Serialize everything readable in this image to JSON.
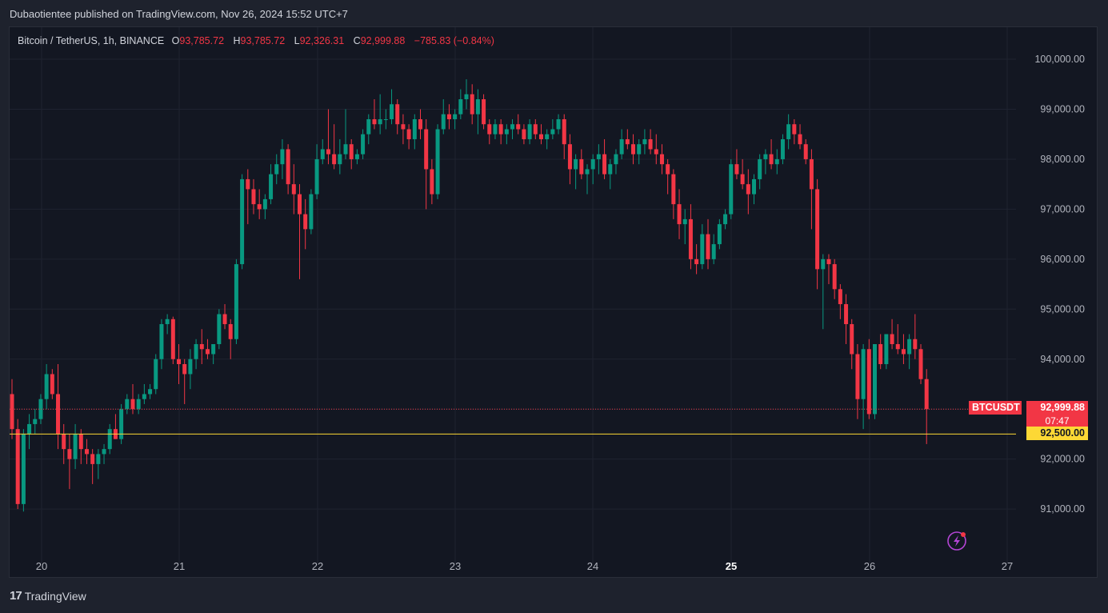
{
  "header": {
    "publisher_line": "Dubaotientee published on TradingView.com, Nov 26, 2024 15:52 UTC+7"
  },
  "legend": {
    "symbol": "Bitcoin / TetherUS, 1h, BINANCE",
    "open_label": "O",
    "open": "93,785.72",
    "high_label": "H",
    "high": "93,785.72",
    "low_label": "L",
    "low": "92,326.31",
    "close_label": "C",
    "close": "92,999.88",
    "change": "−785.83 (−0.84%)"
  },
  "price_axis": {
    "ticks": [
      "100,000.00",
      "99,000.00",
      "98,000.00",
      "97,000.00",
      "96,000.00",
      "95,000.00",
      "94,000.00",
      "92,000.00",
      "91,000.00"
    ]
  },
  "current_price": {
    "symbol_tag": "BTCUSDT",
    "price": "92,999.88",
    "countdown": "07:47"
  },
  "horizontal_line": {
    "price_label": "92,500.00"
  },
  "time_axis": {
    "ticks": [
      "20",
      "21",
      "22",
      "23",
      "24",
      "25",
      "26",
      "27"
    ],
    "bold_tick": "25"
  },
  "footer": {
    "brand": "TradingView",
    "logo_text": "17"
  },
  "colors": {
    "up": "#089981",
    "down": "#f23645",
    "hline": "#fdd835",
    "background": "#131722"
  },
  "chart_data": {
    "type": "candlestick",
    "symbol": "BTCUSDT",
    "interval": "1h",
    "exchange": "BINANCE",
    "x_ticks": [
      "20",
      "21",
      "22",
      "23",
      "24",
      "25",
      "26",
      "27"
    ],
    "y_range": [
      90000,
      100600
    ],
    "current_price": 92999.88,
    "horizontal_level": 92500.0,
    "grid": true,
    "candles_start": "Nov 19, 21:00",
    "candles": [
      [
        93300,
        93600,
        92400,
        92600
      ],
      [
        92600,
        92800,
        91000,
        91100
      ],
      [
        91100,
        92600,
        90950,
        92500
      ],
      [
        92500,
        92900,
        92200,
        92700
      ],
      [
        92700,
        93000,
        92500,
        92800
      ],
      [
        92800,
        93300,
        92700,
        93200
      ],
      [
        93200,
        93900,
        93000,
        93700
      ],
      [
        93700,
        93800,
        93200,
        93300
      ],
      [
        93300,
        93900,
        92200,
        92500
      ],
      [
        92500,
        92700,
        91900,
        92200
      ],
      [
        92200,
        92500,
        91400,
        92000
      ],
      [
        92000,
        92700,
        91800,
        92500
      ],
      [
        92500,
        92600,
        91900,
        92200
      ],
      [
        92200,
        92400,
        91900,
        92100
      ],
      [
        92100,
        92200,
        91500,
        91900
      ],
      [
        91900,
        92200,
        91600,
        92100
      ],
      [
        92100,
        92300,
        91900,
        92200
      ],
      [
        92200,
        92700,
        92100,
        92600
      ],
      [
        92600,
        92900,
        92400,
        92400
      ],
      [
        92400,
        93100,
        92300,
        93000
      ],
      [
        93000,
        93300,
        92900,
        93200
      ],
      [
        93200,
        93500,
        92900,
        93000
      ],
      [
        93000,
        93300,
        92900,
        93200
      ],
      [
        93200,
        93500,
        93100,
        93300
      ],
      [
        93300,
        93500,
        93200,
        93400
      ],
      [
        93400,
        94100,
        93300,
        94000
      ],
      [
        94000,
        94800,
        93800,
        94700
      ],
      [
        94700,
        94900,
        94500,
        94800
      ],
      [
        94800,
        94850,
        93900,
        94000
      ],
      [
        94000,
        94300,
        93500,
        93900
      ],
      [
        93900,
        94000,
        93100,
        93700
      ],
      [
        93700,
        94200,
        93400,
        94000
      ],
      [
        94000,
        94400,
        93800,
        94300
      ],
      [
        94300,
        94600,
        93900,
        94200
      ],
      [
        94200,
        94400,
        94000,
        94100
      ],
      [
        94100,
        94300,
        93900,
        94300
      ],
      [
        94300,
        95000,
        94200,
        94900
      ],
      [
        94900,
        95100,
        94600,
        94700
      ],
      [
        94700,
        94800,
        94000,
        94400
      ],
      [
        94400,
        96000,
        94300,
        95900
      ],
      [
        95900,
        97700,
        95800,
        97600
      ],
      [
        97600,
        97800,
        96700,
        97400
      ],
      [
        97400,
        97600,
        96900,
        97100
      ],
      [
        97100,
        97400,
        96800,
        97000
      ],
      [
        97000,
        97300,
        96800,
        97200
      ],
      [
        97200,
        97900,
        97100,
        97700
      ],
      [
        97700,
        98100,
        97500,
        97900
      ],
      [
        97900,
        98400,
        97600,
        98200
      ],
      [
        98200,
        98300,
        97300,
        97500
      ],
      [
        97500,
        97900,
        96900,
        97300
      ],
      [
        97300,
        97500,
        95600,
        96900
      ],
      [
        96900,
        97200,
        96200,
        96600
      ],
      [
        96600,
        97400,
        96500,
        97300
      ],
      [
        97300,
        98300,
        97200,
        98000
      ],
      [
        98000,
        98400,
        97900,
        98200
      ],
      [
        98200,
        99000,
        97900,
        98100
      ],
      [
        98100,
        98700,
        97800,
        97900
      ],
      [
        97900,
        98400,
        97700,
        98100
      ],
      [
        98100,
        99000,
        98000,
        98300
      ],
      [
        98300,
        98400,
        97800,
        98000
      ],
      [
        98000,
        98200,
        97900,
        98100
      ],
      [
        98100,
        98600,
        98000,
        98500
      ],
      [
        98500,
        98900,
        98300,
        98800
      ],
      [
        98800,
        99200,
        98600,
        98700
      ],
      [
        98700,
        99300,
        98500,
        98800
      ],
      [
        98800,
        99000,
        98600,
        98800
      ],
      [
        98800,
        99400,
        98700,
        99100
      ],
      [
        99100,
        99200,
        98500,
        98700
      ],
      [
        98700,
        98900,
        98300,
        98600
      ],
      [
        98600,
        98700,
        98200,
        98400
      ],
      [
        98400,
        98900,
        98200,
        98800
      ],
      [
        98800,
        99000,
        98400,
        98600
      ],
      [
        98600,
        98800,
        97000,
        97800
      ],
      [
        97800,
        98000,
        97100,
        97300
      ],
      [
        97300,
        98700,
        97200,
        98600
      ],
      [
        98600,
        99200,
        98500,
        98900
      ],
      [
        98900,
        99100,
        98600,
        98800
      ],
      [
        98800,
        99000,
        98600,
        98900
      ],
      [
        98900,
        99400,
        98800,
        99200
      ],
      [
        99200,
        99600,
        99000,
        99300
      ],
      [
        99300,
        99500,
        98700,
        98900
      ],
      [
        98900,
        99400,
        98500,
        99200
      ],
      [
        99200,
        99300,
        98600,
        98700
      ],
      [
        98700,
        98800,
        98300,
        98500
      ],
      [
        98500,
        98800,
        98400,
        98700
      ],
      [
        98700,
        98800,
        98300,
        98500
      ],
      [
        98500,
        98700,
        98300,
        98600
      ],
      [
        98600,
        98800,
        98400,
        98700
      ],
      [
        98700,
        98900,
        98500,
        98600
      ],
      [
        98600,
        98700,
        98300,
        98400
      ],
      [
        98400,
        98800,
        98300,
        98700
      ],
      [
        98700,
        98800,
        98400,
        98500
      ],
      [
        98500,
        98700,
        98300,
        98400
      ],
      [
        98400,
        98600,
        98200,
        98500
      ],
      [
        98500,
        98800,
        98400,
        98600
      ],
      [
        98600,
        98900,
        98500,
        98800
      ],
      [
        98800,
        98900,
        98000,
        98300
      ],
      [
        98300,
        98500,
        97500,
        97800
      ],
      [
        97800,
        98100,
        97400,
        98000
      ],
      [
        98000,
        98200,
        97600,
        97700
      ],
      [
        97700,
        97900,
        97300,
        97800
      ],
      [
        97800,
        98100,
        97500,
        98000
      ],
      [
        98000,
        98300,
        97700,
        98100
      ],
      [
        98100,
        98400,
        97600,
        97700
      ],
      [
        97700,
        98000,
        97400,
        97900
      ],
      [
        97900,
        98200,
        97700,
        98100
      ],
      [
        98100,
        98600,
        98000,
        98400
      ],
      [
        98400,
        98600,
        98200,
        98300
      ],
      [
        98300,
        98500,
        97900,
        98100
      ],
      [
        98100,
        98400,
        97900,
        98300
      ],
      [
        98300,
        98600,
        98100,
        98400
      ],
      [
        98400,
        98600,
        98100,
        98200
      ],
      [
        98200,
        98500,
        97900,
        98100
      ],
      [
        98100,
        98300,
        97700,
        97900
      ],
      [
        97900,
        98000,
        97300,
        97700
      ],
      [
        97700,
        97800,
        96800,
        97100
      ],
      [
        97100,
        97400,
        96400,
        96700
      ],
      [
        96700,
        97000,
        96300,
        96800
      ],
      [
        96800,
        97100,
        95800,
        96000
      ],
      [
        96000,
        96300,
        95700,
        95900
      ],
      [
        95900,
        96700,
        95800,
        96500
      ],
      [
        96500,
        96800,
        95800,
        96000
      ],
      [
        96000,
        96500,
        95900,
        96300
      ],
      [
        96300,
        96800,
        96200,
        96700
      ],
      [
        96700,
        97000,
        96600,
        96900
      ],
      [
        96900,
        98000,
        96800,
        97900
      ],
      [
        97900,
        98200,
        97600,
        97700
      ],
      [
        97700,
        98000,
        97400,
        97500
      ],
      [
        97500,
        97800,
        96900,
        97300
      ],
      [
        97300,
        97700,
        97100,
        97600
      ],
      [
        97600,
        98100,
        97400,
        98000
      ],
      [
        98000,
        98200,
        97700,
        98100
      ],
      [
        98100,
        98400,
        97800,
        97900
      ],
      [
        97900,
        98200,
        97700,
        98000
      ],
      [
        98000,
        98500,
        97900,
        98400
      ],
      [
        98400,
        98900,
        98200,
        98700
      ],
      [
        98700,
        98800,
        98300,
        98500
      ],
      [
        98500,
        98700,
        98200,
        98300
      ],
      [
        98300,
        98400,
        97900,
        98000
      ],
      [
        98000,
        98200,
        96600,
        97400
      ],
      [
        97400,
        97600,
        95400,
        95800
      ],
      [
        95800,
        96100,
        94600,
        96000
      ],
      [
        96000,
        96100,
        95500,
        95900
      ],
      [
        95900,
        96000,
        95200,
        95400
      ],
      [
        95400,
        95500,
        94800,
        95100
      ],
      [
        95100,
        95300,
        94300,
        94700
      ],
      [
        94700,
        94800,
        93800,
        94100
      ],
      [
        94100,
        94300,
        92800,
        93200
      ],
      [
        93200,
        94300,
        92600,
        94200
      ],
      [
        94200,
        94400,
        92800,
        92900
      ],
      [
        92900,
        94300,
        92800,
        94300
      ],
      [
        94300,
        94500,
        93800,
        93900
      ],
      [
        93900,
        94500,
        93800,
        94500
      ],
      [
        94500,
        94800,
        94200,
        94300
      ],
      [
        94300,
        94700,
        94100,
        94200
      ],
      [
        94200,
        94500,
        93900,
        94100
      ],
      [
        94100,
        94500,
        93800,
        94400
      ],
      [
        94400,
        94900,
        94000,
        94200
      ],
      [
        94200,
        94300,
        93500,
        93600
      ],
      [
        93600,
        93800,
        92300,
        93000
      ]
    ]
  }
}
